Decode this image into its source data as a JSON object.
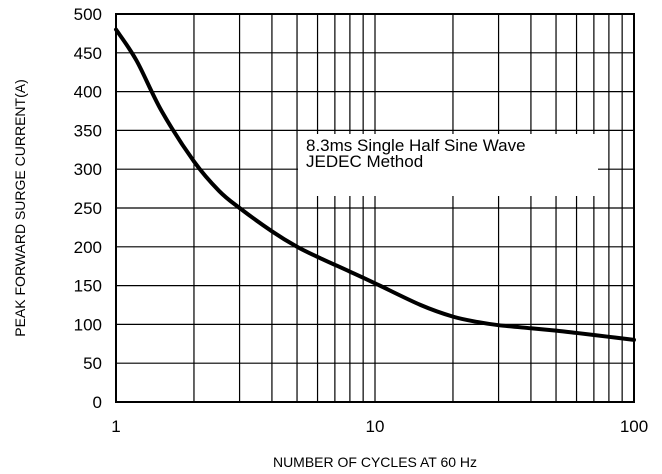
{
  "chart_data": {
    "type": "line",
    "xscale": "log",
    "xlim": [
      1,
      100
    ],
    "ylim": [
      0,
      500
    ],
    "grid": true,
    "xlabel": "NUMBER OF CYCLES AT 60 Hz",
    "ylabel": "PEAK FORWARD SURGE CURRENT(A)",
    "x_ticks": [
      1,
      10,
      100
    ],
    "x_tick_labels": [
      "1",
      "10",
      "100"
    ],
    "y_ticks": [
      0,
      50,
      100,
      150,
      200,
      250,
      300,
      350,
      400,
      450,
      500
    ],
    "y_tick_labels": [
      "0",
      "50",
      "100",
      "150",
      "200",
      "250",
      "300",
      "350",
      "400",
      "450",
      "500"
    ],
    "annotation": {
      "line1": "8.3ms Single Half Sine Wave",
      "line2": "JEDEC Method"
    },
    "series": [
      {
        "x": [
          1,
          1.2,
          1.5,
          2,
          2.5,
          3,
          4,
          5,
          6,
          8,
          10,
          15,
          20,
          25,
          30,
          40,
          50,
          60,
          80,
          100
        ],
        "y": [
          480,
          440,
          375,
          310,
          272,
          250,
          220,
          200,
          187,
          168,
          153,
          125,
          110,
          103,
          99,
          95,
          92,
          89,
          84,
          80
        ]
      }
    ]
  }
}
